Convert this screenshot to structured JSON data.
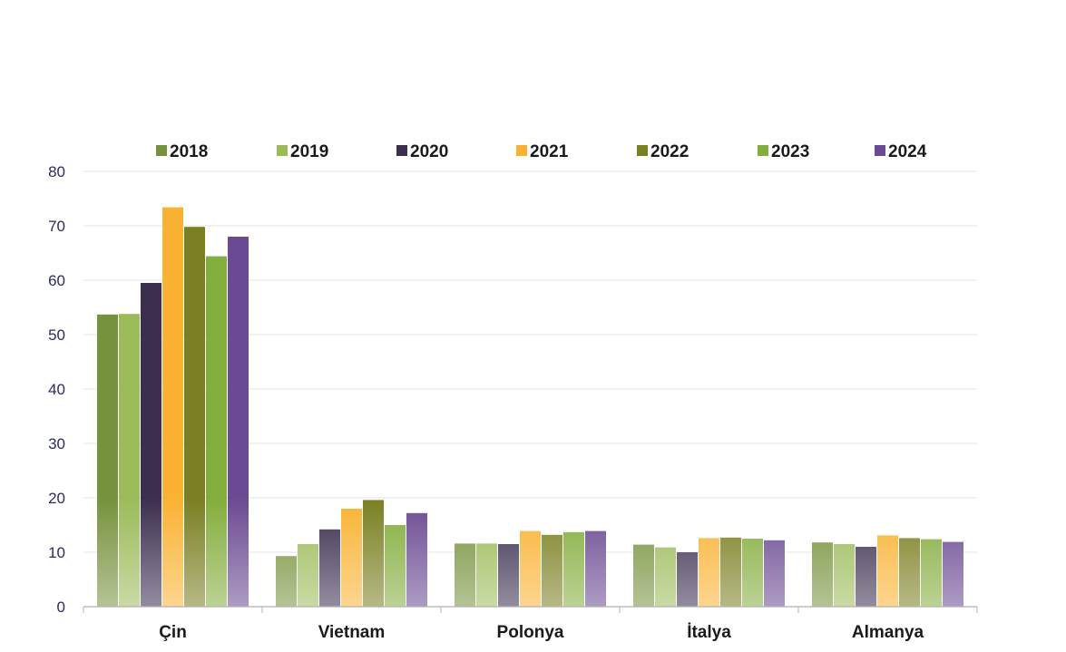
{
  "chart_data": {
    "type": "bar",
    "categories": [
      "Çin",
      "Vietnam",
      "Polonya",
      "İtalya",
      "Almanya"
    ],
    "series": [
      {
        "name": "2018",
        "color": "#76923c",
        "values": [
          53.7,
          9.3,
          11.6,
          11.4,
          11.8
        ]
      },
      {
        "name": "2019",
        "color": "#9bbb59",
        "values": [
          53.8,
          11.5,
          11.6,
          10.9,
          11.5
        ]
      },
      {
        "name": "2020",
        "color": "#3b2e4f",
        "values": [
          59.5,
          14.2,
          11.5,
          10.0,
          11.0
        ]
      },
      {
        "name": "2021",
        "color": "#f9b233",
        "values": [
          73.4,
          18.0,
          13.9,
          12.6,
          13.1
        ]
      },
      {
        "name": "2022",
        "color": "#7a7f22",
        "values": [
          69.8,
          19.6,
          13.2,
          12.7,
          12.6
        ]
      },
      {
        "name": "2023",
        "color": "#83ad3c",
        "values": [
          64.4,
          15.0,
          13.7,
          12.5,
          12.4
        ]
      },
      {
        "name": "2024",
        "color": "#6a4a92",
        "values": [
          68.0,
          17.2,
          13.9,
          12.2,
          11.9
        ]
      }
    ],
    "ylim": [
      0,
      80
    ],
    "yticks": [
      0,
      10,
      20,
      30,
      40,
      50,
      60,
      70,
      80
    ],
    "grid": true,
    "legend_position": "top"
  }
}
